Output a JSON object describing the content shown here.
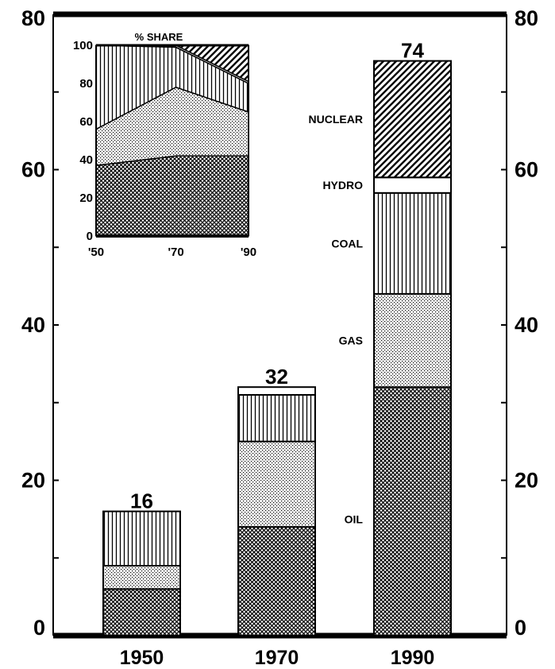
{
  "chart_data": [
    {
      "type": "bar",
      "stacked": true,
      "categories": [
        "1950",
        "1970",
        "1990"
      ],
      "series": [
        {
          "name": "OIL",
          "values": [
            6,
            14,
            32
          ]
        },
        {
          "name": "GAS",
          "values": [
            3,
            11,
            12
          ]
        },
        {
          "name": "COAL",
          "values": [
            7,
            6,
            13
          ]
        },
        {
          "name": "HYDRO",
          "values": [
            0,
            1,
            2
          ]
        },
        {
          "name": "NUCLEAR",
          "values": [
            0,
            0,
            15
          ]
        }
      ],
      "totals": [
        "16",
        "32",
        "74"
      ],
      "ylim": [
        0,
        80
      ],
      "yticks": [
        "0",
        "20",
        "40",
        "60",
        "80"
      ],
      "title": "",
      "xlabel": "",
      "ylabel": "",
      "patterns": {
        "OIL": "crosshatch-dense",
        "GAS": "fine-dots",
        "COAL": "vertical-lines",
        "HYDRO": "blank",
        "NUCLEAR": "diagonal-lines"
      }
    },
    {
      "type": "area",
      "stacked": true,
      "title": "% SHARE",
      "x": [
        1950,
        1972,
        1992
      ],
      "xticks": [
        "'50",
        "'70",
        "'90"
      ],
      "yticks": [
        "0",
        "20",
        "40",
        "60",
        "80",
        "100"
      ],
      "ylim": [
        0,
        100
      ],
      "series": [
        {
          "name": "OIL",
          "values": [
            37,
            42,
            42
          ]
        },
        {
          "name": "GAS",
          "values": [
            19,
            36,
            23
          ]
        },
        {
          "name": "COAL",
          "values": [
            44,
            21,
            15
          ]
        },
        {
          "name": "HYDRO",
          "values": [
            0,
            1,
            1
          ]
        },
        {
          "name": "NUCLEAR",
          "values": [
            0,
            0,
            19
          ]
        }
      ]
    }
  ]
}
